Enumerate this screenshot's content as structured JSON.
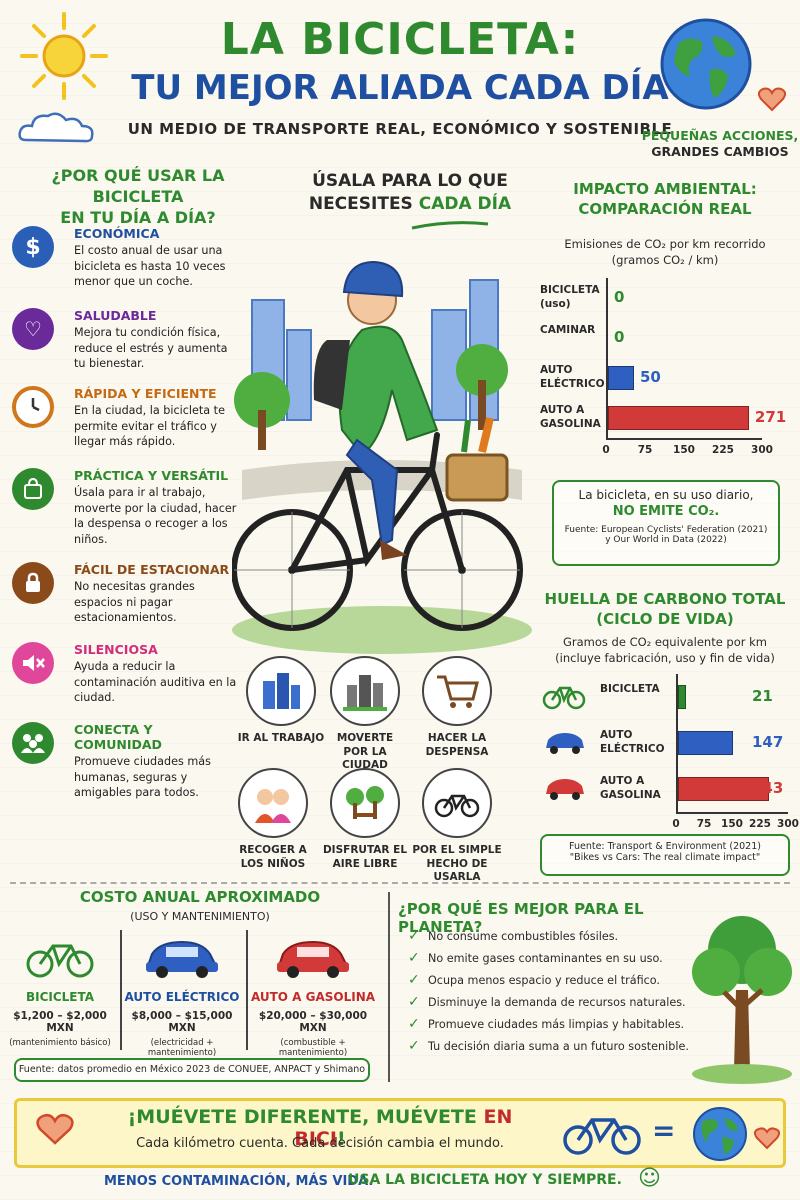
{
  "header": {
    "title_line1": "LA BICICLETA:",
    "title_line2": "TU MEJOR ALIADA CADA DÍA",
    "subtitle": "UN MEDIO DE TRANSPORTE REAL, ECONÓMICO Y SOSTENIBLE",
    "slogan_line1": "PEQUEÑAS ACCIONES,",
    "slogan_line2": "GRANDES CAMBIOS"
  },
  "why": {
    "title_line1": "¿POR QUÉ USAR LA BICICLETA",
    "title_line2": "EN TU DÍA A DÍA?",
    "items": [
      {
        "icon": "dollar-icon",
        "color": "#1f4fa0",
        "title": "ECONÓMICA",
        "desc": "El costo anual de usar una bicicleta es hasta 10 veces menor que un coche."
      },
      {
        "icon": "heart-icon",
        "color": "#6a2a9a",
        "title": "SALUDABLE",
        "desc": "Mejora tu condición física, reduce el estrés y aumenta tu bienestar."
      },
      {
        "icon": "clock-icon",
        "color": "#c56a14",
        "title": "RÁPIDA Y EFICIENTE",
        "desc": "En la ciudad, la bicicleta te permite evitar el tráfico y llegar más rápido."
      },
      {
        "icon": "shopping-bag-icon",
        "color": "#2f8a2f",
        "title": "PRÁCTICA Y VERSÁTIL",
        "desc": "Úsala para ir al trabajo, moverte por la ciudad, hacer la despensa o recoger a los niños."
      },
      {
        "icon": "lock-icon",
        "color": "#8a4a1a",
        "title": "FÁCIL DE ESTACIONAR",
        "desc": "No necesitas grandes espacios ni pagar estacionamientos."
      },
      {
        "icon": "mute-icon",
        "color": "#d12d7b",
        "title": "SILENCIOSA",
        "desc": "Ayuda a reducir la contaminación auditiva en la ciudad."
      },
      {
        "icon": "community-icon",
        "color": "#2f8a2f",
        "title": "CONECTA Y COMUNIDAD",
        "desc": "Promueve ciudades más humanas, seguras y amigables para todos."
      }
    ]
  },
  "use": {
    "title_line1": "ÚSALA PARA LO QUE",
    "title_line2a": "NECESITES ",
    "title_line2b": "CADA DÍA",
    "cases": [
      {
        "icon": "buildings-icon",
        "l1": "IR AL TRABAJO",
        "l2": ""
      },
      {
        "icon": "city-icon",
        "l1": "MOVERTE",
        "l2": "POR LA CIUDAD"
      },
      {
        "icon": "cart-icon",
        "l1": "HACER LA",
        "l2": "DESPENSA"
      },
      {
        "icon": "kids-icon",
        "l1": "RECOGER A",
        "l2": "LOS NIÑOS"
      },
      {
        "icon": "park-icon",
        "l1": "DISFRUTAR EL",
        "l2": "AIRE LIBRE"
      },
      {
        "icon": "bike-icon",
        "l1": "POR EL SIMPLE",
        "l2": "HECHO DE USARLA"
      }
    ]
  },
  "impact": {
    "title_line1": "IMPACTO AMBIENTAL:",
    "title_line2": "COMPARACIÓN REAL",
    "sub_line1": "Emisiones de CO₂ por km recorrido",
    "sub_line2": "(gramos CO₂ / km)",
    "note_line1": "La bicicleta, en su uso diario,",
    "note_line2": "NO EMITE CO₂.",
    "source_line1": "Fuente: European Cyclists' Federation (2021)",
    "source_line2": "y Our World in Data (2022)"
  },
  "footprint": {
    "title_line1": "HUELLA DE CARBONO TOTAL",
    "title_line2": "(CICLO DE VIDA)",
    "sub_line1": "Gramos de CO₂ equivalente por km",
    "sub_line2": "(incluye fabricación, uso y fin de vida)",
    "source_line1": "Fuente: Transport & Environment (2021)",
    "source_line2": "\"Bikes vs Cars: The real climate impact\""
  },
  "chart_data": [
    {
      "type": "bar",
      "orientation": "horizontal",
      "title": "IMPACTO AMBIENTAL: COMPARACIÓN REAL",
      "categories": [
        "BICICLETA (uso)",
        "CAMINAR",
        "AUTO ELÉCTRICO",
        "AUTO A GASOLINA"
      ],
      "values": [
        0,
        0,
        50,
        271
      ],
      "colors": [
        "#2f8a2f",
        "#2f8a2f",
        "#2f5fc0",
        "#d23a3a"
      ],
      "xlim": [
        0,
        300
      ],
      "ticks": [
        0,
        75,
        150,
        225,
        300
      ]
    },
    {
      "type": "bar",
      "orientation": "horizontal",
      "title": "HUELLA DE CARBONO TOTAL (CICLO DE VIDA)",
      "categories": [
        "BICICLETA",
        "AUTO ELÉCTRICO",
        "AUTO A GASOLINA"
      ],
      "values": [
        21,
        147,
        243
      ],
      "colors": [
        "#2f8a2f",
        "#2f5fc0",
        "#d23a3a"
      ],
      "xlim": [
        0,
        300
      ],
      "ticks": [
        0,
        75,
        150,
        225,
        300
      ]
    }
  ],
  "cost": {
    "title": "COSTO ANUAL APROXIMADO",
    "subtitle": "(USO Y MANTENIMIENTO)",
    "columns": [
      {
        "name": "BICICLETA",
        "price": "$1,200 – $2,000 MXN",
        "note": "(mantenimiento básico)",
        "color": "#2f8a2f"
      },
      {
        "name": "AUTO ELÉCTRICO",
        "price": "$8,000 – $15,000 MXN",
        "note": "(electricidad + mantenimiento)",
        "color": "#1f4fa0"
      },
      {
        "name": "AUTO A GASOLINA",
        "price": "$20,000 – $30,000 MXN",
        "note": "(combustible + mantenimiento)",
        "color": "#c22b2b"
      }
    ],
    "source": "Fuente: datos promedio en México 2023 de CONUEE, ANPACT y Shimano"
  },
  "planet": {
    "title": "¿POR QUÉ ES MEJOR PARA EL PLANETA?",
    "items": [
      "No consume combustibles fósiles.",
      "No emite gases contaminantes en su uso.",
      "Ocupa menos espacio y reduce el tráfico.",
      "Disminuye la demanda de recursos naturales.",
      "Promueve ciudades más limpias y habitables.",
      "Tu decisión diaria suma a un futuro sostenible."
    ]
  },
  "footer": {
    "banner_a": "¡MUÉVETE DIFERENTE, MUÉVETE ",
    "banner_b": "EN BICI",
    "banner_c": "!",
    "banner_sub": "Cada kilómetro cuenta. Cada decisión cambia el mundo.",
    "equals": "=",
    "bottom_left": "MENOS CONTAMINACIÓN, MÁS VIDA.",
    "bottom_right": "USA LA BICICLETA HOY Y SIEMPRE.",
    "smile": "☺"
  }
}
